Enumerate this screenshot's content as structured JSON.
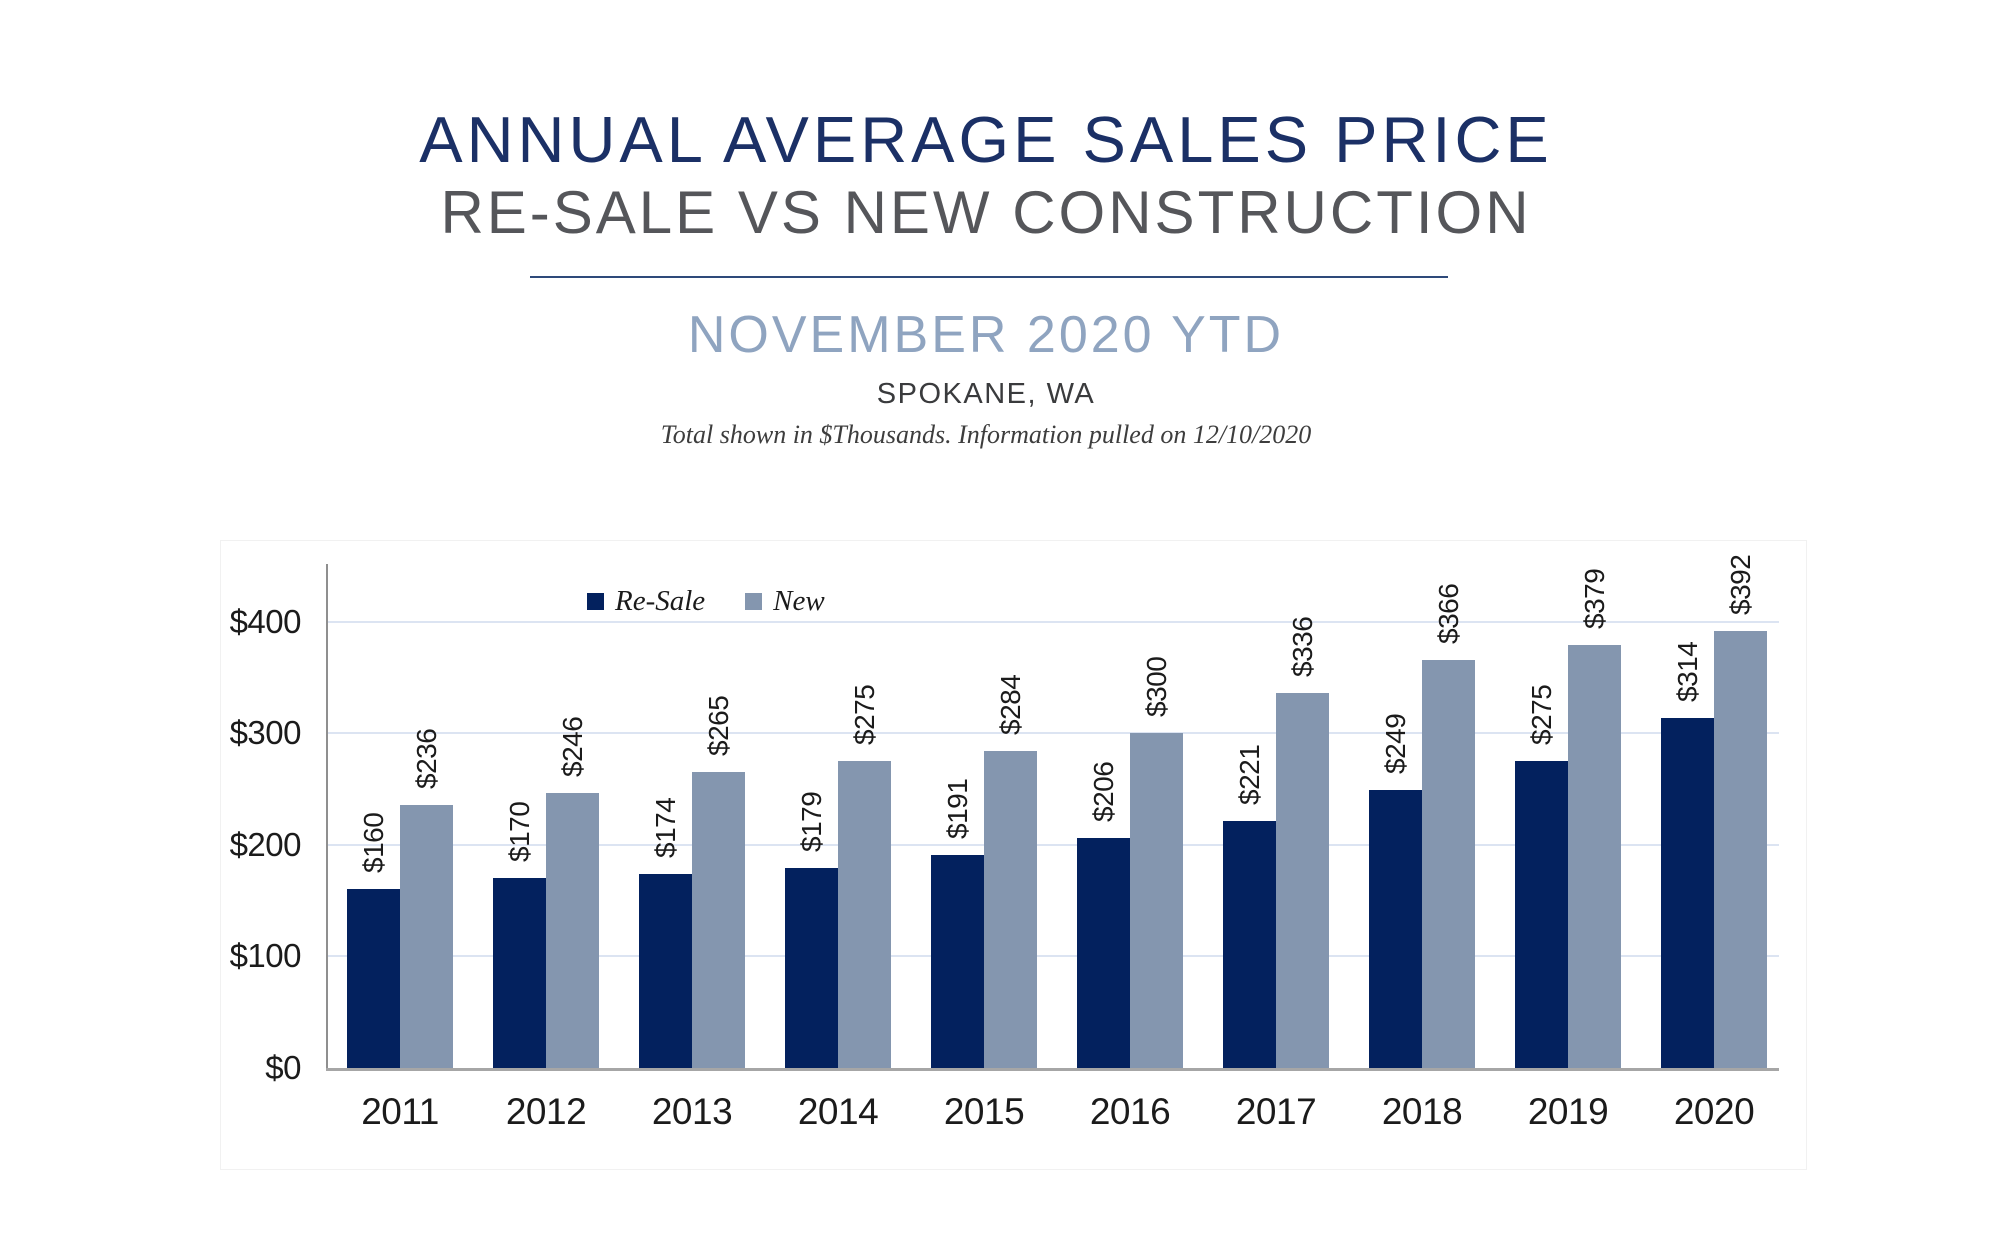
{
  "header": {
    "title": "ANNUAL AVERAGE SALES PRICE",
    "subtitle": "RE-SALE VS NEW CONSTRUCTION",
    "period": "NOVEMBER 2020 YTD",
    "location": "SPOKANE, WA",
    "note": "Total shown in $Thousands. Information pulled on 12/10/2020"
  },
  "colors": {
    "title_navy": "#1B3066",
    "subtitle_gray": "#55565A",
    "period_blue": "#8FA4C0",
    "divider_navy": "#2E4A7A",
    "resale_bar": "#03215E",
    "new_bar": "#8496AF",
    "gridline": "#DCE4F2",
    "y_axis_line": "#8F8F8F",
    "x_axis_line": "#A6A6A6",
    "label_text": "#1B1B1B"
  },
  "chart_data": {
    "type": "bar",
    "categories": [
      "2011",
      "2012",
      "2013",
      "2014",
      "2015",
      "2016",
      "2017",
      "2018",
      "2019",
      "2020"
    ],
    "series": [
      {
        "name": "Re-Sale",
        "color": "#03215E",
        "values": [
          160,
          170,
          174,
          179,
          191,
          206,
          221,
          249,
          275,
          314
        ]
      },
      {
        "name": "New",
        "color": "#8496AF",
        "values": [
          236,
          246,
          265,
          275,
          284,
          300,
          336,
          366,
          379,
          392
        ]
      }
    ],
    "value_prefix": "$",
    "y_tick_values": [
      0,
      100,
      200,
      300,
      400
    ],
    "y_tick_labels": [
      "$0",
      "$100",
      "$200",
      "$300",
      "$400"
    ],
    "ylim": [
      0,
      450
    ],
    "grid": true,
    "legend_position": "top-inside",
    "data_label_rotation": -90
  }
}
